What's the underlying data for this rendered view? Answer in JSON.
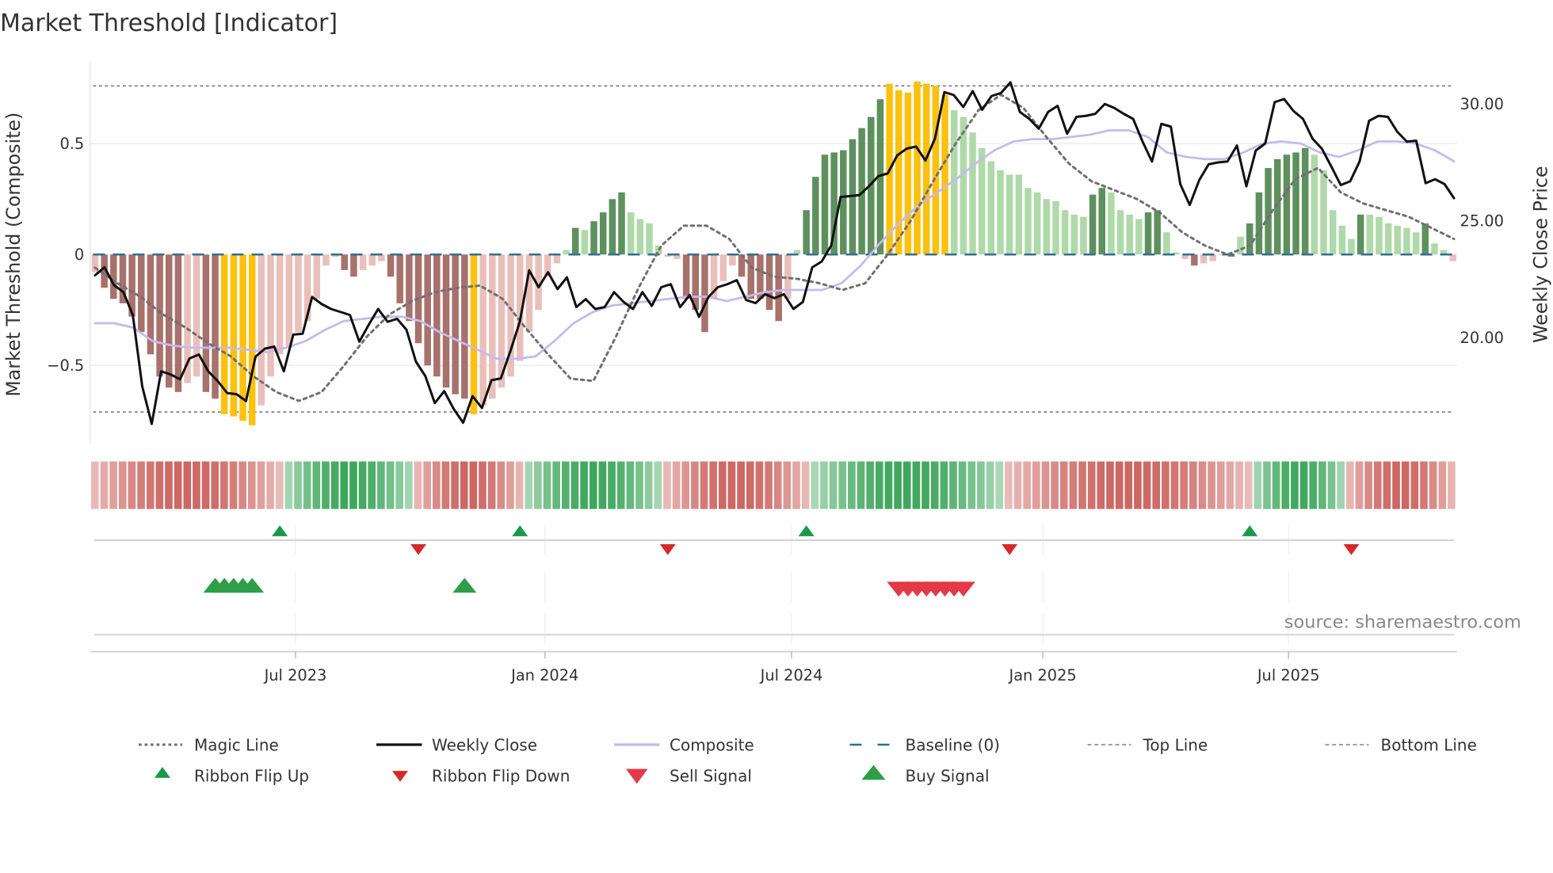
{
  "chart_data": {
    "type": "bar",
    "title": "Market Threshold [Indicator]",
    "ylabel_left": "Market Threshold (Composite)",
    "ylabel_right": "Weekly Close Price",
    "ylim_left": [
      -0.85,
      0.85
    ],
    "ylim_right_ticks": [
      "30.00",
      "25.00",
      "20.00"
    ],
    "right_tick_values": [
      30,
      25,
      20
    ],
    "left_ticks": [
      {
        "v": 0.5,
        "label": "0.5"
      },
      {
        "v": 0,
        "label": "0"
      },
      {
        "v": -0.5,
        "label": "−0.5"
      }
    ],
    "x_ticks": [
      {
        "week": 21.7,
        "label": "Jul 2023"
      },
      {
        "week": 48.7,
        "label": "Jan 2024"
      },
      {
        "week": 75.4,
        "label": "Jul 2024"
      },
      {
        "week": 102.6,
        "label": "Jan 2025"
      },
      {
        "week": 129.2,
        "label": "Jul 2025"
      }
    ],
    "top_line": 0.76,
    "bottom_line": -0.71,
    "baseline": 0,
    "grid": true,
    "composite_bars": [
      -0.08,
      -0.15,
      -0.2,
      -0.22,
      -0.28,
      -0.35,
      -0.45,
      -0.55,
      -0.6,
      -0.62,
      -0.58,
      -0.55,
      -0.62,
      -0.65,
      -0.72,
      -0.73,
      -0.75,
      -0.77,
      -0.68,
      -0.55,
      -0.45,
      -0.42,
      -0.35,
      -0.3,
      -0.2,
      -0.05,
      -0.01,
      -0.07,
      -0.1,
      -0.07,
      -0.05,
      -0.03,
      -0.1,
      -0.22,
      -0.3,
      -0.4,
      -0.5,
      -0.55,
      -0.6,
      -0.63,
      -0.65,
      -0.72,
      -0.68,
      -0.65,
      -0.6,
      -0.55,
      -0.48,
      -0.35,
      -0.25,
      -0.1,
      -0.04,
      0.02,
      0.12,
      0.11,
      0.15,
      0.19,
      0.25,
      0.28,
      0.19,
      0.16,
      0.14,
      0.04,
      -0.01,
      -0.02,
      -0.2,
      -0.25,
      -0.35,
      -0.2,
      -0.12,
      -0.05,
      -0.1,
      -0.2,
      -0.2,
      -0.25,
      -0.3,
      -0.2,
      0.02,
      0.2,
      0.35,
      0.45,
      0.46,
      0.47,
      0.52,
      0.57,
      0.62,
      0.7,
      0.77,
      0.74,
      0.73,
      0.78,
      0.77,
      0.76,
      0.72,
      0.65,
      0.62,
      0.55,
      0.48,
      0.42,
      0.38,
      0.36,
      0.36,
      0.3,
      0.28,
      0.25,
      0.24,
      0.2,
      0.18,
      0.17,
      0.27,
      0.3,
      0.28,
      0.2,
      0.18,
      0.16,
      0.19,
      0.2,
      0.1,
      0.01,
      -0.02,
      -0.05,
      -0.04,
      -0.03,
      0,
      -0.01,
      0.08,
      0.14,
      0.28,
      0.39,
      0.43,
      0.45,
      0.46,
      0.48,
      0.45,
      0.38,
      0.2,
      0.13,
      0.07,
      0.18,
      0.18,
      0.17,
      0.14,
      0.13,
      0.12,
      0.1,
      0.14,
      0.05,
      0.02,
      -0.03
    ],
    "bar_tone_codes": "LDDDDDDDDDLLDDYYYYLLLLLLLLLDDLLLDDDDDDDDDYLLLLLLLLLgGgGGGGggggLLDDDLLLDDDDDLgGGGGGGGGGYYYYYYYgggggggggggggggGGggggGGggLDLLLDgGGGGGGGgggggGggggggGggL",
    "bar_tone_colors": {
      "D": "#a7716c",
      "L": "#e9bfba",
      "Y": "#fcc10f",
      "G": "#5e905d",
      "g": "#afd9a9"
    },
    "weekly_close": [
      22.67,
      23.01,
      22.25,
      21.95,
      20.97,
      17.92,
      16.31,
      18.56,
      18.43,
      18.22,
      19.11,
      19.28,
      18.56,
      18.14,
      17.63,
      17.58,
      17.29,
      19.19,
      19.53,
      19.62,
      18.56,
      20.13,
      20.17,
      21.74,
      21.44,
      21.23,
      21.1,
      20.97,
      19.83,
      20.55,
      21.23,
      20.68,
      20.81,
      20.34,
      18.98,
      18.35,
      17.2,
      17.71,
      16.95,
      16.36,
      17.5,
      16.99,
      18.18,
      18.26,
      19.41,
      20.68,
      22.88,
      22.16,
      22.8,
      22.08,
      22.58,
      21.31,
      21.65,
      21.23,
      21.31,
      21.95,
      21.53,
      21.23,
      21.95,
      21.36,
      22.16,
      22.29,
      21.31,
      21.82,
      20.89,
      21.74,
      22.16,
      22.29,
      22.46,
      21.61,
      21.48,
      21.86,
      21.69,
      21.86,
      21.23,
      21.53,
      23.01,
      23.26,
      23.94,
      26.02,
      26.06,
      26.1,
      26.48,
      26.91,
      27.03,
      27.8,
      28.09,
      28.18,
      27.58,
      28.52,
      30.51,
      30.38,
      29.87,
      30.55,
      29.75,
      30.34,
      30.47,
      30.93,
      29.66,
      29.36,
      28.94,
      29.66,
      29.92,
      28.73,
      29.45,
      29.49,
      29.58,
      30.0,
      29.83,
      29.58,
      29.36,
      28.39,
      27.54,
      29.15,
      29.03,
      26.57,
      25.68,
      26.74,
      27.42,
      27.5,
      27.54,
      28.22,
      26.48,
      28.01,
      28.31,
      30.08,
      30.21,
      29.7,
      29.36,
      28.52,
      28.09,
      27.33,
      26.53,
      26.69,
      27.54,
      29.28,
      29.49,
      29.45,
      28.81,
      28.39,
      28.43,
      26.61,
      26.78,
      26.57,
      25.97
    ],
    "composite_line": [
      -0.31,
      -0.31,
      -0.33,
      -0.39,
      -0.41,
      -0.42,
      -0.42,
      -0.42,
      -0.43,
      -0.44,
      -0.42,
      -0.39,
      -0.34,
      -0.3,
      -0.29,
      -0.28,
      -0.28,
      -0.3,
      -0.35,
      -0.39,
      -0.43,
      -0.47,
      -0.47,
      -0.46,
      -0.39,
      -0.31,
      -0.26,
      -0.23,
      -0.22,
      -0.21,
      -0.2,
      -0.19,
      -0.19,
      -0.21,
      -0.19,
      -0.17,
      -0.16,
      -0.16,
      -0.16,
      -0.13,
      -0.05,
      0.05,
      0.14,
      0.22,
      0.28,
      0.34,
      0.41,
      0.47,
      0.51,
      0.52,
      0.52,
      0.53,
      0.54,
      0.56,
      0.56,
      0.53,
      0.46,
      0.44,
      0.43,
      0.43,
      0.46,
      0.5,
      0.51,
      0.5,
      0.46,
      0.44,
      0.47,
      0.51,
      0.51,
      0.5,
      0.47,
      0.42
    ],
    "magic_line": [
      -0.06,
      -0.13,
      -0.19,
      -0.27,
      -0.33,
      -0.4,
      -0.46,
      -0.55,
      -0.62,
      -0.66,
      -0.62,
      -0.5,
      -0.37,
      -0.27,
      -0.21,
      -0.17,
      -0.15,
      -0.14,
      -0.2,
      -0.33,
      -0.45,
      -0.56,
      -0.57,
      -0.37,
      -0.15,
      0.04,
      0.13,
      0.13,
      0.07,
      -0.06,
      -0.1,
      -0.11,
      -0.13,
      -0.16,
      -0.13,
      0.0,
      0.15,
      0.33,
      0.5,
      0.65,
      0.72,
      0.66,
      0.53,
      0.41,
      0.33,
      0.29,
      0.25,
      0.19,
      0.1,
      0.04,
      0.0,
      0.04,
      0.2,
      0.34,
      0.39,
      0.28,
      0.23,
      0.2,
      0.17,
      0.12,
      0.07
    ],
    "ribbon_segments": [
      {
        "dir": "down",
        "from": 0,
        "to": 20
      },
      {
        "dir": "up",
        "from": 21,
        "to": 34
      },
      {
        "dir": "down",
        "from": 35,
        "to": 46
      },
      {
        "dir": "up",
        "from": 47,
        "to": 61
      },
      {
        "dir": "down",
        "from": 62,
        "to": 77
      },
      {
        "dir": "up",
        "from": 78,
        "to": 98
      },
      {
        "dir": "down",
        "from": 99,
        "to": 125
      },
      {
        "dir": "up",
        "from": 126,
        "to": 135
      },
      {
        "dir": "down",
        "from": 136,
        "to": 147
      }
    ],
    "ribbon_flip_up_weeks": [
      20,
      46,
      77,
      125
    ],
    "ribbon_flip_down_weeks": [
      35,
      62,
      99,
      136
    ],
    "buy_signal_weeks": [
      13,
      14,
      15,
      16,
      17,
      40
    ],
    "sell_signal_weeks": [
      87,
      88,
      89,
      90,
      91,
      92,
      93,
      94
    ],
    "colors": {
      "close": "#111111",
      "composite": "#c5b9ee",
      "magic": "#707070",
      "baseline": "#2f6f96",
      "ribbon_up": "#2f9f4f",
      "ribbon_down": "#c85a55",
      "flip_up": "#1a9a48",
      "flip_down": "#d42a2a",
      "buy": "#2e9e48",
      "sell": "#e23a48"
    },
    "source": "source: sharemaestro.com",
    "legend": [
      {
        "label": "Magic Line",
        "kind": "dotted"
      },
      {
        "label": "Weekly Close",
        "kind": "solid"
      },
      {
        "label": "Composite",
        "kind": "lavender"
      },
      {
        "label": "Baseline (0)",
        "kind": "dashed"
      },
      {
        "label": "Top Line",
        "kind": "thin-dashed"
      },
      {
        "label": "Bottom Line",
        "kind": "thin-dashed"
      },
      {
        "label": "Ribbon Flip Up",
        "kind": "flip-up"
      },
      {
        "label": "Ribbon Flip Down",
        "kind": "flip-down"
      },
      {
        "label": "Sell Signal",
        "kind": "sell"
      },
      {
        "label": "Buy Signal",
        "kind": "buy"
      }
    ]
  }
}
